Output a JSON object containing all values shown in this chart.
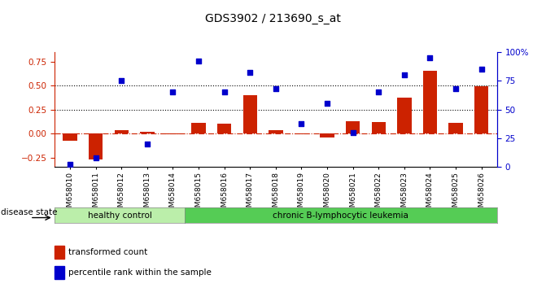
{
  "title": "GDS3902 / 213690_s_at",
  "categories": [
    "GSM658010",
    "GSM658011",
    "GSM658012",
    "GSM658013",
    "GSM658014",
    "GSM658015",
    "GSM658016",
    "GSM658017",
    "GSM658018",
    "GSM658019",
    "GSM658020",
    "GSM658021",
    "GSM658022",
    "GSM658023",
    "GSM658024",
    "GSM658025",
    "GSM658026"
  ],
  "bar_values": [
    -0.08,
    -0.27,
    0.03,
    0.02,
    -0.01,
    0.11,
    0.1,
    0.4,
    0.03,
    -0.01,
    -0.04,
    0.13,
    0.12,
    0.37,
    0.65,
    0.11,
    0.49
  ],
  "dot_values_pct": [
    2,
    8,
    75,
    20,
    65,
    92,
    65,
    82,
    68,
    38,
    55,
    30,
    65,
    80,
    95,
    68,
    85
  ],
  "ylim_left": [
    -0.35,
    0.85
  ],
  "ylim_right": [
    0,
    100
  ],
  "yticks_left": [
    -0.25,
    0.0,
    0.25,
    0.5,
    0.75
  ],
  "yticks_right": [
    0,
    25,
    50,
    75,
    100
  ],
  "hlines": [
    0.25,
    0.5
  ],
  "bar_color": "#cc2200",
  "dot_color": "#0000cc",
  "zero_line_color": "#cc2200",
  "hline_color": "#000000",
  "n_healthy": 5,
  "n_leukemia": 12,
  "healthy_color": "#bbeeaa",
  "leukemia_color": "#55cc55",
  "disease_state_label": "disease state",
  "healthy_label": "healthy control",
  "leukemia_label": "chronic B-lymphocytic leukemia",
  "legend_bar_label": "transformed count",
  "legend_dot_label": "percentile rank within the sample",
  "title_color": "#000000",
  "left_axis_color": "#cc2200",
  "right_axis_color": "#0000cc"
}
